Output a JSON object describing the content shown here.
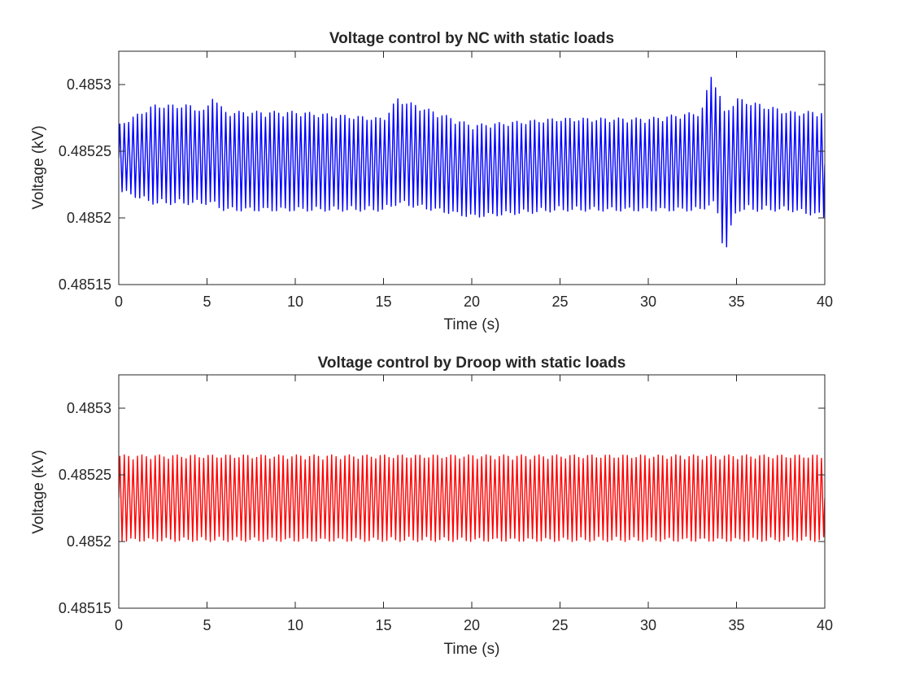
{
  "figure": {
    "background": "#ffffff",
    "axis_color": "#262626"
  },
  "chart_data": [
    {
      "type": "line",
      "title": "Voltage control by NC with static loads",
      "xlabel": "Time (s)",
      "ylabel": "Voltage (kV)",
      "xlim": [
        0,
        40
      ],
      "ylim": [
        0.48515,
        0.485325
      ],
      "xticks": [
        0,
        5,
        10,
        15,
        20,
        25,
        30,
        35,
        40
      ],
      "xtick_labels": [
        "0",
        "5",
        "10",
        "15",
        "20",
        "25",
        "30",
        "35",
        "40"
      ],
      "yticks": [
        0.48515,
        0.4852,
        0.48525,
        0.4853
      ],
      "ytick_labels": [
        "0.48515",
        "0.4852",
        "0.48525",
        "0.4853"
      ],
      "grid": false,
      "series": [
        {
          "color": "#0000ff",
          "oscillation_cycles": 160,
          "envelope": {
            "t": [
              0,
              2,
              4,
              5,
              5.2,
              6,
              10,
              15,
              15.8,
              20,
              25,
              30,
              33.0,
              33.6,
              34.0,
              34.3,
              35,
              38,
              40
            ],
            "upper": [
              0.48527,
              0.485285,
              0.485285,
              0.48528,
              0.485295,
              0.48528,
              0.48528,
              0.485275,
              0.48529,
              0.48527,
              0.485275,
              0.485275,
              0.48528,
              0.48531,
              0.485295,
              0.48528,
              0.48529,
              0.48528,
              0.48528
            ],
            "lower": [
              0.48522,
              0.48521,
              0.48521,
              0.48521,
              0.48521,
              0.485205,
              0.485205,
              0.485205,
              0.48521,
              0.4852,
              0.485205,
              0.485205,
              0.485205,
              0.48521,
              0.4852,
              0.48517,
              0.485205,
              0.485205,
              0.4852
            ]
          }
        }
      ]
    },
    {
      "type": "line",
      "title": "Voltage control by Droop with static loads",
      "xlabel": "Time (s)",
      "ylabel": "Voltage (kV)",
      "xlim": [
        0,
        40
      ],
      "ylim": [
        0.48515,
        0.485325
      ],
      "xticks": [
        0,
        5,
        10,
        15,
        20,
        25,
        30,
        35,
        40
      ],
      "xtick_labels": [
        "0",
        "5",
        "10",
        "15",
        "20",
        "25",
        "30",
        "35",
        "40"
      ],
      "yticks": [
        0.48515,
        0.4852,
        0.48525,
        0.4853
      ],
      "ytick_labels": [
        "0.48515",
        "0.4852",
        "0.48525",
        "0.4853"
      ],
      "grid": false,
      "series": [
        {
          "color": "#ff0000",
          "oscillation_cycles": 160,
          "envelope": {
            "t": [
              0,
              40
            ],
            "upper": [
              0.485265,
              0.485265
            ],
            "lower": [
              0.4852,
              0.4852
            ]
          }
        }
      ]
    }
  ]
}
